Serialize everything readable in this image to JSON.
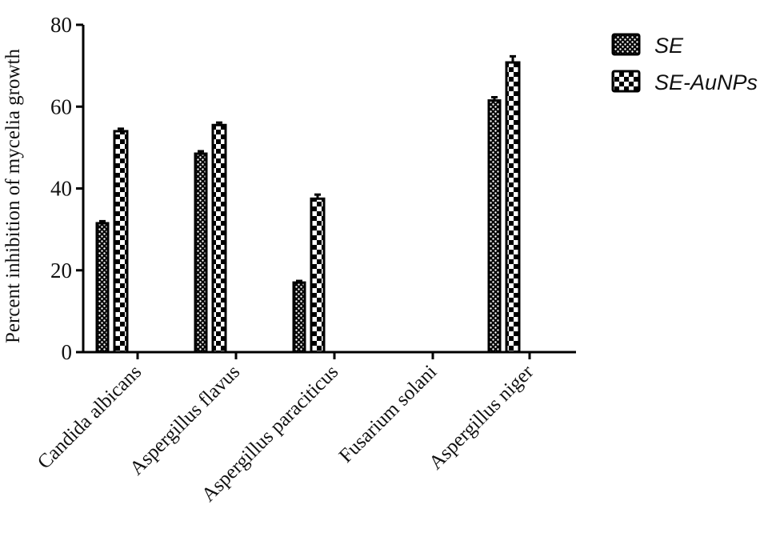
{
  "chart_data": {
    "type": "bar",
    "title": "",
    "xlabel": "",
    "ylabel": "Percent inhibition of mycelia growth",
    "ylim": [
      0,
      80
    ],
    "yticks": [
      0,
      20,
      40,
      60,
      80
    ],
    "grid": false,
    "legend_position": "top-right",
    "categories": [
      "Candida albicans",
      "Aspergillus flavus",
      "Aspergillus paraciticus",
      "Fusarium solani",
      "Aspergillus niger"
    ],
    "series": [
      {
        "name": "SE",
        "pattern": "fine-dots",
        "values": [
          31.5,
          48.5,
          17,
          0,
          61.5
        ],
        "errors": [
          0.5,
          0.6,
          0.4,
          0,
          0.8
        ]
      },
      {
        "name": "SE-AuNPs",
        "pattern": "checkerboard",
        "values": [
          54,
          55.5,
          37.5,
          0,
          70.8
        ],
        "errors": [
          0.6,
          0.6,
          1.0,
          0,
          1.5
        ]
      }
    ]
  },
  "legend": {
    "items": [
      {
        "label": "SE"
      },
      {
        "label": "SE-AuNPs"
      }
    ]
  },
  "colors": {
    "ink": "#000000",
    "background": "#ffffff"
  }
}
